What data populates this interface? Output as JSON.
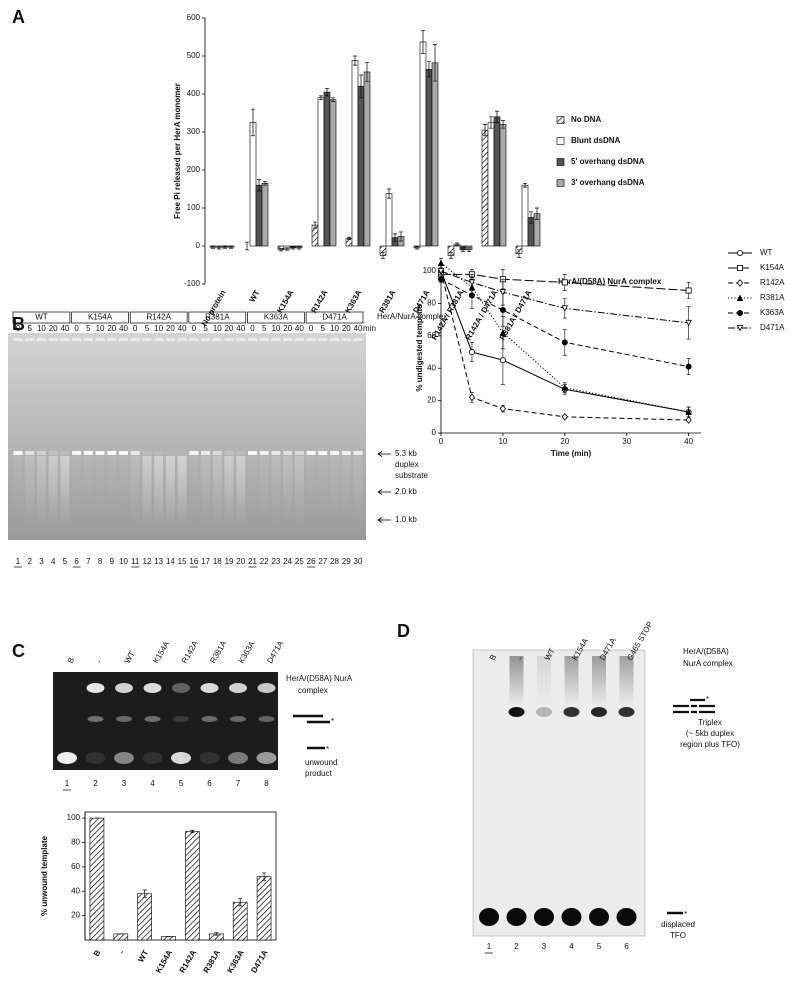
{
  "panel_labels": [
    "A",
    "B",
    "C",
    "D"
  ],
  "chart_data": [
    {
      "type": "bar",
      "y_label": "Free Pi released per HerA monomer",
      "categories": [
        "No protein",
        "WT",
        "K154A",
        "R142A",
        "K363A",
        "R381A",
        "D471A",
        "R142A / R381A",
        "R142A / D471A",
        "R381A / D471A"
      ],
      "series": [
        {
          "name": "No DNA",
          "color": "#ffffff",
          "hatch": true,
          "values": [
            -3,
            0,
            -10,
            55,
            20,
            -25,
            -5,
            -25,
            305,
            -20
          ],
          "errors": [
            3,
            10,
            3,
            8,
            3,
            8,
            3,
            8,
            15,
            10
          ]
        },
        {
          "name": "Blunt dsDNA",
          "color": "#ffffff",
          "hatch": false,
          "values": [
            -5,
            325,
            -8,
            390,
            488,
            138,
            537,
            5,
            325,
            160
          ],
          "errors": [
            3,
            35,
            3,
            5,
            12,
            12,
            30,
            3,
            15,
            5
          ]
        },
        {
          "name": "5' overhang dsDNA",
          "color": "#555555",
          "hatch": false,
          "values": [
            -3,
            160,
            -5,
            405,
            420,
            22,
            465,
            -10,
            340,
            75
          ],
          "errors": [
            3,
            15,
            3,
            10,
            30,
            10,
            20,
            5,
            15,
            15
          ]
        },
        {
          "name": "3' overhang dsDNA",
          "color": "#aaaaaa",
          "hatch": false,
          "values": [
            -3,
            165,
            -5,
            385,
            458,
            25,
            482,
            -10,
            320,
            85
          ],
          "errors": [
            3,
            5,
            3,
            5,
            25,
            12,
            48,
            5,
            10,
            15
          ]
        }
      ],
      "ylim": [
        -100,
        600
      ],
      "yticks": [
        -100,
        0,
        100,
        200,
        300,
        400,
        500,
        600
      ],
      "annotation": "HerA/(D58A) NurA complex",
      "legend": "right"
    },
    {
      "type": "line",
      "x_label": "Time (min)",
      "y_label": "% undigested template",
      "x": [
        0,
        5,
        10,
        20,
        40
      ],
      "series": [
        {
          "name": "WT",
          "color": "#000000",
          "marker": "circle",
          "filled": false,
          "dash": "solid",
          "values": [
            100,
            50,
            45,
            27,
            13
          ],
          "errors": [
            0,
            6,
            15,
            3,
            3
          ]
        },
        {
          "name": "K154A",
          "color": "#000000",
          "marker": "square",
          "filled": false,
          "dash": "long-dash",
          "values": [
            98,
            98,
            95,
            93,
            88
          ],
          "errors": [
            2,
            3,
            6,
            5,
            5
          ]
        },
        {
          "name": "R142A",
          "color": "#000000",
          "marker": "diamond",
          "filled": false,
          "dash": "dashed",
          "values": [
            100,
            22,
            15,
            10,
            8
          ],
          "errors": [
            0,
            3,
            2,
            1,
            1
          ]
        },
        {
          "name": "R381A",
          "color": "#000000",
          "marker": "triangle",
          "filled": true,
          "dash": "dotted",
          "values": [
            105,
            90,
            62,
            28,
            13
          ],
          "errors": [
            3,
            6,
            10,
            3,
            3
          ]
        },
        {
          "name": "K363A",
          "color": "#000000",
          "marker": "circle",
          "filled": true,
          "dash": "dashed",
          "values": [
            95,
            85,
            76,
            56,
            41
          ],
          "errors": [
            2,
            8,
            10,
            8,
            5
          ]
        },
        {
          "name": "D471A",
          "color": "#000000",
          "marker": "down-triangle",
          "filled": false,
          "dash": "dash-dot",
          "values": [
            100,
            93,
            87,
            77,
            68
          ],
          "errors": [
            2,
            5,
            8,
            6,
            10
          ]
        }
      ],
      "xlim": [
        0,
        42
      ],
      "xticks": [
        0,
        10,
        20,
        30,
        40
      ],
      "ylim": [
        0,
        105
      ],
      "yticks": [
        0,
        20,
        40,
        60,
        80,
        100
      ],
      "legend": "right"
    },
    {
      "type": "bar",
      "y_label": "% unwound template",
      "categories": [
        "B",
        "-",
        "WT",
        "K154A",
        "R142A",
        "R381A",
        "K363A",
        "D471A"
      ],
      "values": [
        100,
        5,
        38,
        3,
        89,
        5,
        31,
        52
      ],
      "errors": [
        0,
        0,
        3,
        0,
        1,
        1,
        3,
        3
      ],
      "color": "#ffffff",
      "hatch": true,
      "ylim": [
        0,
        105
      ],
      "yticks": [
        20,
        40,
        60,
        80,
        100
      ]
    }
  ],
  "gel_b": {
    "groups": [
      "WT",
      "K154A",
      "R142A",
      "R381A",
      "K363A",
      "D471A"
    ],
    "timepoints": [
      0,
      5,
      10,
      20,
      40
    ],
    "time_unit": "min",
    "complex_label": "HerA/NurA complex",
    "substrate_label": [
      "5.3 kb",
      "duplex",
      "substrate"
    ],
    "marker_2kb": "2.0 kb",
    "marker_1kb": "1.0 kb",
    "lane_numbers": [
      1,
      2,
      3,
      4,
      5,
      6,
      7,
      8,
      9,
      10,
      11,
      12,
      13,
      14,
      15,
      16,
      17,
      18,
      19,
      20,
      21,
      22,
      23,
      24,
      25,
      26,
      27,
      28,
      29,
      30
    ]
  },
  "gel_c": {
    "lanes": [
      "B",
      "-",
      "WT",
      "K154A",
      "R142A",
      "R381A",
      "K363A",
      "D471A"
    ],
    "complex_label": [
      "HerA/(D58A)  NurA",
      "complex"
    ],
    "asterisk": "*",
    "product_label": [
      "unwound",
      "product"
    ],
    "lane_numbers": [
      1,
      2,
      3,
      4,
      5,
      6,
      7,
      8
    ]
  },
  "gel_d": {
    "lanes": [
      "B",
      "-",
      "WT",
      "K154A",
      "D471A",
      "G465 STOP"
    ],
    "complex_label": [
      "HerA/(D58A)",
      "NurA complex"
    ],
    "asterisk": "*",
    "triplex_label": [
      "Triplex",
      "(~ 5kb duplex",
      "region plus TFO)"
    ],
    "tfo_label": [
      "displaced",
      "TFO"
    ],
    "lane_numbers": [
      1,
      2,
      3,
      4,
      5,
      6
    ]
  }
}
